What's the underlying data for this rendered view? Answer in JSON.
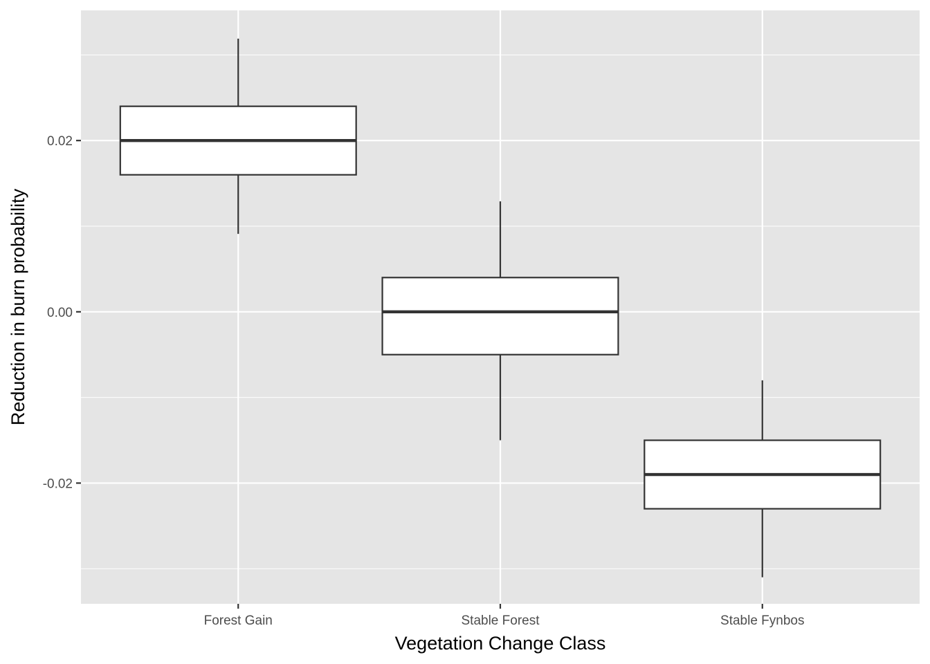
{
  "chart_data": {
    "type": "boxplot",
    "title": "",
    "xlabel": "Vegetation Change Class",
    "ylabel": "Reduction in burn probability",
    "categories": [
      "Forest Gain",
      "Stable Forest",
      "Stable Fynbos"
    ],
    "boxes": [
      {
        "category": "Forest Gain",
        "whisker_low": 0.0091,
        "q1": 0.016,
        "median": 0.02,
        "q3": 0.024,
        "whisker_high": 0.0319
      },
      {
        "category": "Stable Forest",
        "whisker_low": -0.015,
        "q1": -0.005,
        "median": 0.0,
        "q3": 0.004,
        "whisker_high": 0.0129
      },
      {
        "category": "Stable Fynbos",
        "whisker_low": -0.031,
        "q1": -0.023,
        "median": -0.019,
        "q3": -0.015,
        "whisker_high": -0.008
      }
    ],
    "ylim": [
      -0.0341,
      0.0352
    ],
    "y_ticks": [
      -0.02,
      0.0,
      0.02
    ],
    "y_tick_labels": [
      "-0.02",
      "0.00",
      "0.02"
    ],
    "y_minor_ticks": [
      -0.03,
      -0.01,
      0.01,
      0.03
    ],
    "grid": true,
    "colors": {
      "panel_background": "#e5e5e5",
      "grid": "#ffffff",
      "box_fill": "#ffffff",
      "box_stroke": "#333333",
      "tick": "#333333"
    }
  }
}
